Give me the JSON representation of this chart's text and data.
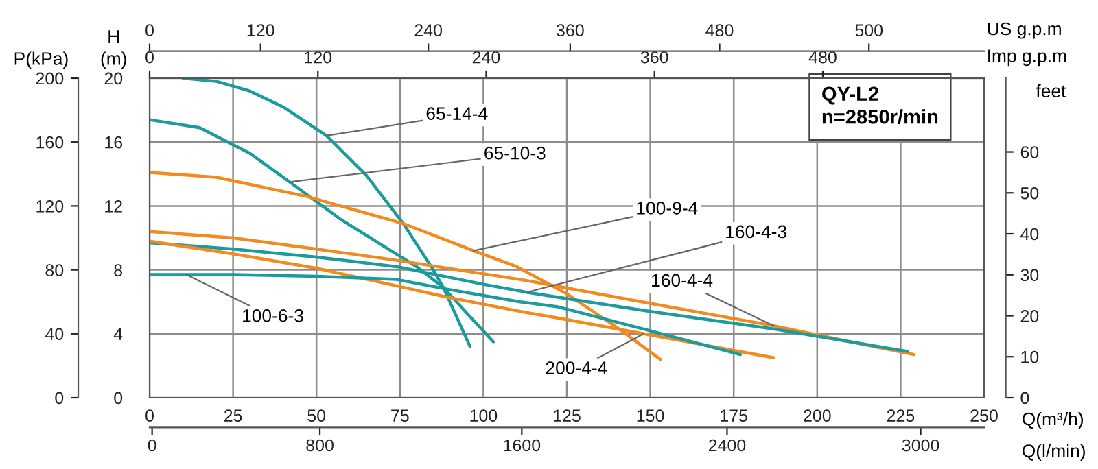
{
  "chart_data": {
    "type": "line",
    "xlabel": "Q(m³/h)",
    "ylabel": "H\n(m)",
    "y2label": "P(kPa)",
    "y3label": "feet",
    "x2label": "Imp g.p.m",
    "xlim": [
      0,
      250
    ],
    "xticks": [
      0,
      25,
      50,
      75,
      100,
      125,
      150,
      175,
      200,
      225,
      250
    ],
    "ylim": [
      0,
      20
    ],
    "yticks": [
      0,
      4,
      8,
      12,
      16,
      20
    ],
    "y2lim": [
      0,
      200
    ],
    "y2ticks": [
      0,
      40,
      80,
      120,
      160,
      200
    ],
    "y3lim": [
      0,
      78
    ],
    "y3ticks": [
      0,
      10,
      20,
      30,
      40,
      50,
      60
    ],
    "x2lim": [
      0,
      595
    ],
    "x2ticks": [
      0,
      120,
      240,
      360,
      480
    ],
    "grid": true,
    "series": [
      {
        "color": "#1a9b9e",
        "x": [
          10,
          20,
          30,
          40,
          53,
          65,
          76,
          85,
          88,
          96
        ],
        "values": [
          20.0,
          19.8,
          19.2,
          18.2,
          16.4,
          13.9,
          10.9,
          8.0,
          6.9,
          3.2
        ]
      },
      {
        "color": "#1a9b9e",
        "x": [
          0,
          15,
          30,
          42,
          57,
          70,
          80,
          88,
          95,
          103
        ],
        "values": [
          17.4,
          16.9,
          15.3,
          13.5,
          11.2,
          9.5,
          8.2,
          6.9,
          5.3,
          3.5
        ]
      },
      {
        "color": "#f28a1e",
        "x": [
          0,
          20,
          47,
          76,
          97,
          110,
          125,
          140,
          153
        ],
        "values": [
          14.1,
          13.8,
          12.6,
          10.9,
          9.2,
          8.2,
          6.5,
          4.4,
          2.4
        ]
      },
      {
        "color": "#f28a1e",
        "x": [
          0,
          25,
          50,
          74,
          111,
          150,
          187,
          210,
          229
        ],
        "values": [
          10.4,
          10.0,
          9.3,
          8.6,
          7.4,
          5.9,
          4.5,
          3.5,
          2.7
        ]
      },
      {
        "color": "#1a9b9e",
        "x": [
          0,
          25,
          50,
          74,
          100,
          113,
          122,
          150,
          187,
          227
        ],
        "values": [
          9.7,
          9.3,
          8.8,
          8.2,
          7.1,
          6.6,
          6.3,
          5.4,
          4.3,
          2.9
        ]
      },
      {
        "color": "#f28a1e",
        "x": [
          0,
          25,
          50,
          74,
          89,
          111,
          122,
          148,
          187
        ],
        "values": [
          9.8,
          9.0,
          8.1,
          7.0,
          6.3,
          5.4,
          5.0,
          4.0,
          2.5
        ]
      },
      {
        "color": "#1a9b9e",
        "x": [
          0,
          11,
          25,
          50,
          74,
          89,
          111,
          122,
          148,
          177
        ],
        "values": [
          7.7,
          7.7,
          7.7,
          7.6,
          7.4,
          6.8,
          6.0,
          5.7,
          4.3,
          2.7
        ]
      }
    ],
    "annotations": [
      {
        "text": "65-14-4",
        "x": 53,
        "y": 16.4
      },
      {
        "text": "65-10-3",
        "x": 42,
        "y": 13.5
      },
      {
        "text": "100-9-4",
        "x": 97,
        "y": 9.2
      },
      {
        "text": "160-4-3",
        "x": 113,
        "y": 6.6
      },
      {
        "text": "160-4-4",
        "x": 187,
        "y": 4.5
      },
      {
        "text": "200-4-4",
        "x": 148,
        "y": 4.0
      },
      {
        "text": "100-6-3",
        "x": 11,
        "y": 7.7
      },
      "QY-L2\nn=2850r/min",
      "US g.p.m",
      "0",
      "120",
      "240",
      "360",
      "480",
      "500",
      "Q(l/min)",
      "0",
      "800",
      "1600",
      "2400",
      "3000"
    ]
  }
}
